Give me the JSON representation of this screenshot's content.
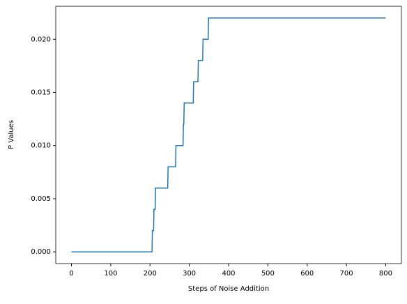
{
  "chart_data": {
    "type": "line",
    "xlabel": "Steps of Noise Addition",
    "ylabel": "P Values",
    "series": [
      {
        "name": "P Values",
        "color": "#1f77b4",
        "x": [
          0,
          205,
          206,
          209,
          210,
          213,
          214,
          245,
          246,
          265,
          266,
          284,
          285,
          286,
          287,
          310,
          311,
          322,
          323,
          334,
          335,
          348,
          349,
          800
        ],
        "values": [
          0,
          0,
          0.002,
          0.002,
          0.004,
          0.004,
          0.006,
          0.006,
          0.008,
          0.008,
          0.01,
          0.01,
          0.012,
          0.012,
          0.014,
          0.014,
          0.016,
          0.016,
          0.018,
          0.018,
          0.02,
          0.02,
          0.022,
          0.022
        ]
      }
    ],
    "xlim": [
      -40,
      840
    ],
    "xticks": [
      0,
      100,
      200,
      300,
      400,
      500,
      600,
      700,
      800
    ],
    "ylim": [
      -0.0011,
      0.0231
    ],
    "yticks": [
      {
        "value": 0,
        "label": "0.000"
      },
      {
        "value": 0.005,
        "label": "0.005"
      },
      {
        "value": 0.01,
        "label": "0.010"
      },
      {
        "value": 0.015,
        "label": "0.015"
      },
      {
        "value": 0.02,
        "label": "0.020"
      }
    ],
    "grid": false
  }
}
